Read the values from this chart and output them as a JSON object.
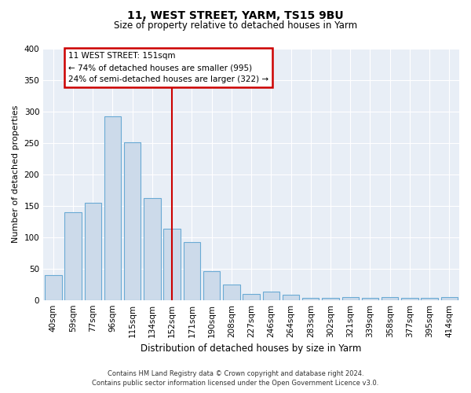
{
  "title": "11, WEST STREET, YARM, TS15 9BU",
  "subtitle": "Size of property relative to detached houses in Yarm",
  "xlabel": "Distribution of detached houses by size in Yarm",
  "ylabel": "Number of detached properties",
  "bar_labels": [
    "40sqm",
    "59sqm",
    "77sqm",
    "96sqm",
    "115sqm",
    "134sqm",
    "152sqm",
    "171sqm",
    "190sqm",
    "208sqm",
    "227sqm",
    "246sqm",
    "264sqm",
    "283sqm",
    "302sqm",
    "321sqm",
    "339sqm",
    "358sqm",
    "377sqm",
    "395sqm",
    "414sqm"
  ],
  "bar_values": [
    40,
    139,
    155,
    292,
    251,
    162,
    113,
    92,
    46,
    25,
    10,
    13,
    8,
    3,
    3,
    5,
    3,
    5,
    3,
    3,
    5
  ],
  "bar_color": "#ccdaea",
  "bar_edge_color": "#6aaad4",
  "reference_bar_idx": 6,
  "annotation_title": "11 WEST STREET: 151sqm",
  "annotation_line1": "← 74% of detached houses are smaller (995)",
  "annotation_line2": "24% of semi-detached houses are larger (322) →",
  "annotation_box_color": "#ffffff",
  "annotation_box_edge": "#cc0000",
  "ref_line_color": "#cc0000",
  "ylim": [
    0,
    400
  ],
  "yticks": [
    0,
    50,
    100,
    150,
    200,
    250,
    300,
    350,
    400
  ],
  "footer_line1": "Contains HM Land Registry data © Crown copyright and database right 2024.",
  "footer_line2": "Contains public sector information licensed under the Open Government Licence v3.0.",
  "bg_color": "#ffffff",
  "plot_bg_color": "#e8eef6",
  "grid_color": "#ffffff",
  "title_fontsize": 10,
  "subtitle_fontsize": 8.5,
  "xlabel_fontsize": 8.5,
  "ylabel_fontsize": 8,
  "tick_fontsize": 7.5,
  "footer_fontsize": 6.0
}
